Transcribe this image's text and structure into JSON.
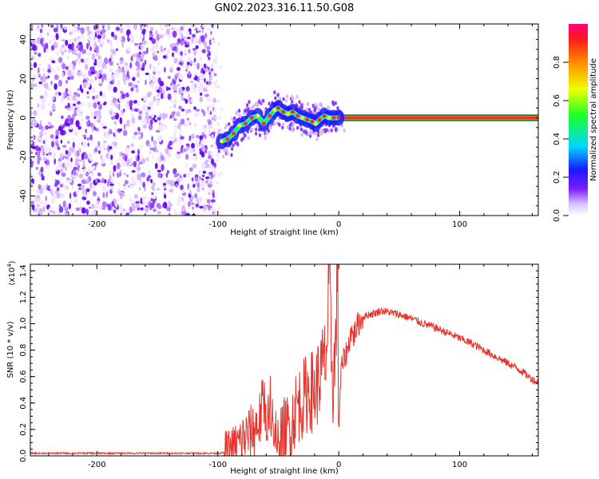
{
  "title": "GN02.2023.316.11.50.G08",
  "colors": {
    "line": "#e8322b",
    "track_dot": "#ff2a1a",
    "track_band": "#38e0ff",
    "noise": [
      "#f1e6ff",
      "#d6b8ff",
      "#b47bff",
      "#8c3cff",
      "#6a12f2"
    ]
  },
  "chart_data": [
    {
      "type": "heatmap",
      "name": "spectrogram",
      "xlabel": "Height of straight line (km)",
      "ylabel": "Frequency (Hz)",
      "xlim": [
        -255,
        165
      ],
      "ylim": [
        -50,
        48
      ],
      "xticks": [
        -200,
        -100,
        0,
        100
      ],
      "xtick_labels": [
        "-200",
        "-100",
        "0",
        "100"
      ],
      "yticks": [
        -40,
        -20,
        0,
        20,
        40
      ],
      "ytick_labels": [
        "-40",
        "-20",
        "0",
        "20",
        "40"
      ],
      "noise_region_x": [
        -255,
        -102
      ],
      "constant_tone_x": [
        0,
        165
      ],
      "constant_tone_freq": 0,
      "track": {
        "x": [
          -97,
          -92,
          -87,
          -82,
          -77,
          -72,
          -67,
          -62,
          -57,
          -53,
          -50,
          -46,
          -42,
          -38,
          -34,
          -30,
          -26,
          -22,
          -19,
          -16,
          -12,
          -8,
          -4,
          0
        ],
        "y": [
          -12,
          -11,
          -8,
          -4,
          -3,
          0,
          1,
          -3,
          1,
          4,
          5,
          3,
          2,
          3,
          1,
          0,
          -1,
          -2,
          -3,
          -1,
          1,
          0,
          0,
          0
        ]
      },
      "colorbar": {
        "label": "Normalized spectral amplitude",
        "ticks": [
          0.0,
          0.2,
          0.4,
          0.6,
          0.8
        ],
        "tick_labels": [
          "0.0",
          "0.2",
          "0.4",
          "0.6",
          "0.8"
        ],
        "range": [
          0,
          1
        ]
      }
    },
    {
      "type": "line",
      "name": "snr",
      "xlabel": "Height of straight line (km)",
      "ylabel": "SNR (10 * v/v)",
      "scale_label_base": "(x10",
      "scale_label_exp": "4",
      "scale_label_end": ")",
      "xlim": [
        -255,
        165
      ],
      "ylim": [
        0,
        1.45
      ],
      "xticks": [
        -200,
        -100,
        0,
        100
      ],
      "xtick_labels": [
        "-200",
        "-100",
        "0",
        "100"
      ],
      "yticks": [
        0.0,
        0.2,
        0.4,
        0.6,
        0.8,
        1.0,
        1.2,
        1.4
      ],
      "ytick_labels": [
        "0.0",
        "0.2",
        "0.4",
        "0.6",
        "0.8",
        "1.0",
        "1.2",
        "1.4"
      ],
      "series": {
        "x": [
          -255,
          -200,
          -150,
          -100,
          -90,
          -80,
          -70,
          -65,
          -62,
          -58,
          -55,
          -52,
          -50,
          -48,
          -45,
          -40,
          -35,
          -30,
          -25,
          -20,
          -15,
          -12,
          -10,
          -8,
          -5,
          -3,
          -1,
          0,
          2,
          5,
          8,
          10,
          12,
          15,
          20,
          25,
          30,
          35,
          40,
          50,
          60,
          70,
          80,
          90,
          100,
          110,
          120,
          130,
          140,
          150,
          160,
          165
        ],
        "y": [
          0.02,
          0.02,
          0.02,
          0.02,
          0.03,
          0.12,
          0.2,
          0.28,
          0.42,
          0.3,
          0.45,
          0.18,
          0.06,
          0.1,
          0.18,
          0.22,
          0.38,
          0.42,
          0.5,
          0.48,
          0.62,
          0.7,
          0.78,
          1.3,
          0.55,
          0.72,
          1.42,
          0.22,
          0.65,
          0.75,
          0.82,
          0.95,
          0.9,
          0.98,
          1.05,
          1.07,
          1.08,
          1.1,
          1.09,
          1.07,
          1.04,
          1.0,
          0.97,
          0.93,
          0.89,
          0.85,
          0.8,
          0.75,
          0.7,
          0.65,
          0.58,
          0.55
        ]
      }
    }
  ]
}
